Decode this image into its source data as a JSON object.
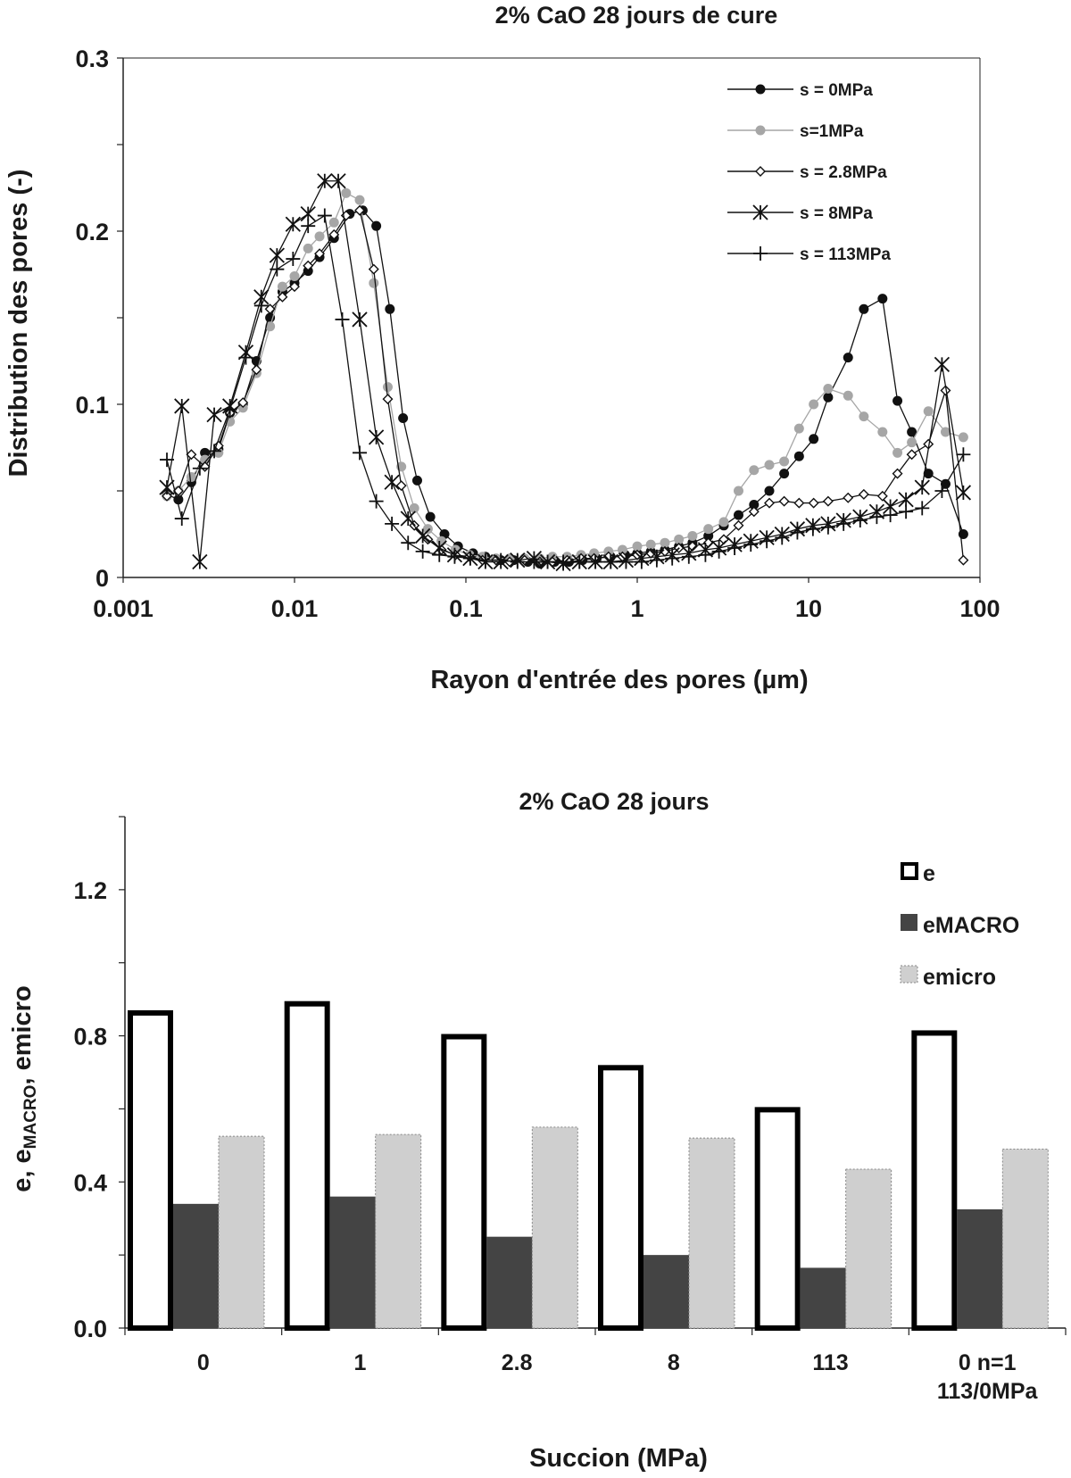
{
  "chart_data": [
    {
      "type": "line",
      "title": "2% CaO 28 jours de cure",
      "xlabel": "Rayon d'entrée des pores (µm)",
      "ylabel": "Distribution des pores (-)",
      "xscale": "log",
      "xlim": [
        0.001,
        100
      ],
      "ylim": [
        0,
        0.3
      ],
      "xticks": [
        "0.001",
        "0.01",
        "0.1",
        "1",
        "10",
        "100"
      ],
      "yticks": [
        "0",
        "0.1",
        "0.2",
        "0.3"
      ],
      "legend_position": "top-right",
      "series": [
        {
          "name": "s = 0MPa",
          "marker": "filled-circle",
          "color": "#111111",
          "x": [
            0.0018,
            0.0021,
            0.0025,
            0.003,
            0.0036,
            0.0042,
            0.005,
            0.006,
            0.0072,
            0.0085,
            0.01,
            0.012,
            0.014,
            0.017,
            0.021,
            0.025,
            0.03,
            0.036,
            0.043,
            0.052,
            0.062,
            0.075,
            0.09,
            0.11,
            0.13,
            0.16,
            0.19,
            0.23,
            0.27,
            0.33,
            0.4,
            0.48,
            0.58,
            0.7,
            0.85,
            1.0,
            1.2,
            1.45,
            1.75,
            2.1,
            2.6,
            3.2,
            3.9,
            4.8,
            5.9,
            7.2,
            8.8,
            10.7,
            13,
            17,
            21,
            27,
            33,
            40,
            50,
            63,
            80
          ],
          "y": [
            0.048,
            0.045,
            0.055,
            0.072,
            0.074,
            0.095,
            0.1,
            0.125,
            0.15,
            0.165,
            0.17,
            0.177,
            0.185,
            0.196,
            0.21,
            0.212,
            0.203,
            0.155,
            0.092,
            0.056,
            0.035,
            0.025,
            0.018,
            0.014,
            0.012,
            0.01,
            0.01,
            0.009,
            0.008,
            0.009,
            0.009,
            0.01,
            0.011,
            0.012,
            0.013,
            0.014,
            0.015,
            0.016,
            0.018,
            0.02,
            0.024,
            0.03,
            0.036,
            0.042,
            0.05,
            0.06,
            0.07,
            0.08,
            0.104,
            0.127,
            0.155,
            0.161,
            0.102,
            0.084,
            0.06,
            0.054,
            0.025
          ]
        },
        {
          "name": "s=1MPa",
          "marker": "filled-circle",
          "color": "#a6a6a6",
          "x": [
            0.0018,
            0.0021,
            0.0025,
            0.003,
            0.0036,
            0.0042,
            0.005,
            0.006,
            0.0072,
            0.0085,
            0.01,
            0.012,
            0.014,
            0.017,
            0.02,
            0.024,
            0.029,
            0.035,
            0.042,
            0.05,
            0.06,
            0.072,
            0.087,
            0.105,
            0.125,
            0.15,
            0.18,
            0.22,
            0.27,
            0.32,
            0.39,
            0.47,
            0.56,
            0.68,
            0.82,
            1.0,
            1.2,
            1.45,
            1.75,
            2.1,
            2.6,
            3.2,
            3.9,
            4.8,
            5.9,
            7.2,
            8.8,
            10.7,
            13,
            17,
            21,
            27,
            33,
            40,
            50,
            63,
            80
          ],
          "y": [
            0.047,
            0.05,
            0.058,
            0.068,
            0.072,
            0.09,
            0.098,
            0.118,
            0.145,
            0.168,
            0.174,
            0.19,
            0.197,
            0.205,
            0.222,
            0.218,
            0.17,
            0.11,
            0.064,
            0.04,
            0.028,
            0.021,
            0.016,
            0.013,
            0.012,
            0.011,
            0.011,
            0.011,
            0.011,
            0.012,
            0.012,
            0.013,
            0.014,
            0.015,
            0.016,
            0.018,
            0.019,
            0.02,
            0.022,
            0.024,
            0.028,
            0.032,
            0.05,
            0.062,
            0.065,
            0.067,
            0.086,
            0.1,
            0.109,
            0.105,
            0.093,
            0.084,
            0.072,
            0.078,
            0.096,
            0.084,
            0.081
          ]
        },
        {
          "name": "s = 2.8MPa",
          "marker": "open-diamond",
          "color": "#111111",
          "x": [
            0.0018,
            0.0021,
            0.0025,
            0.003,
            0.0036,
            0.0042,
            0.005,
            0.006,
            0.0072,
            0.0085,
            0.01,
            0.012,
            0.014,
            0.017,
            0.02,
            0.024,
            0.029,
            0.035,
            0.042,
            0.05,
            0.06,
            0.072,
            0.087,
            0.105,
            0.125,
            0.15,
            0.18,
            0.22,
            0.27,
            0.32,
            0.39,
            0.47,
            0.56,
            0.68,
            0.82,
            1.0,
            1.2,
            1.45,
            1.75,
            2.1,
            2.6,
            3.2,
            3.9,
            4.8,
            5.9,
            7.2,
            8.8,
            10.7,
            13,
            17,
            21,
            27,
            33,
            40,
            50,
            63,
            80
          ],
          "y": [
            0.047,
            0.05,
            0.071,
            0.064,
            0.076,
            0.095,
            0.101,
            0.12,
            0.155,
            0.162,
            0.168,
            0.18,
            0.187,
            0.198,
            0.209,
            0.212,
            0.178,
            0.103,
            0.053,
            0.03,
            0.022,
            0.016,
            0.013,
            0.012,
            0.01,
            0.01,
            0.009,
            0.01,
            0.009,
            0.009,
            0.01,
            0.011,
            0.011,
            0.012,
            0.012,
            0.013,
            0.014,
            0.015,
            0.017,
            0.018,
            0.02,
            0.022,
            0.03,
            0.038,
            0.043,
            0.044,
            0.043,
            0.043,
            0.044,
            0.046,
            0.048,
            0.047,
            0.06,
            0.071,
            0.077,
            0.108,
            0.01
          ]
        },
        {
          "name": "s = 8MPa",
          "marker": "asterisk",
          "color": "#111111",
          "x": [
            0.0018,
            0.0022,
            0.0028,
            0.0034,
            0.0042,
            0.0052,
            0.0064,
            0.0079,
            0.0098,
            0.012,
            0.015,
            0.018,
            0.024,
            0.03,
            0.037,
            0.046,
            0.056,
            0.07,
            0.086,
            0.106,
            0.13,
            0.16,
            0.2,
            0.25,
            0.3,
            0.37,
            0.46,
            0.57,
            0.7,
            0.86,
            1.06,
            1.3,
            1.6,
            2.0,
            2.5,
            3.0,
            3.7,
            4.6,
            5.7,
            7.0,
            8.6,
            10.6,
            13,
            16,
            20,
            25,
            30,
            37,
            46,
            60,
            80
          ],
          "y": [
            0.052,
            0.099,
            0.009,
            0.094,
            0.099,
            0.13,
            0.162,
            0.186,
            0.204,
            0.21,
            0.229,
            0.229,
            0.149,
            0.081,
            0.055,
            0.034,
            0.024,
            0.017,
            0.013,
            0.011,
            0.009,
            0.009,
            0.01,
            0.011,
            0.009,
            0.008,
            0.009,
            0.009,
            0.009,
            0.01,
            0.011,
            0.012,
            0.013,
            0.014,
            0.016,
            0.017,
            0.019,
            0.021,
            0.023,
            0.025,
            0.028,
            0.03,
            0.031,
            0.033,
            0.035,
            0.038,
            0.041,
            0.045,
            0.052,
            0.123,
            0.049
          ]
        },
        {
          "name": "s = 113MPa",
          "marker": "plus",
          "color": "#111111",
          "x": [
            0.0018,
            0.0022,
            0.0028,
            0.0034,
            0.0042,
            0.0052,
            0.0064,
            0.0079,
            0.0098,
            0.012,
            0.015,
            0.019,
            0.024,
            0.03,
            0.037,
            0.046,
            0.056,
            0.07,
            0.086,
            0.106,
            0.13,
            0.16,
            0.2,
            0.25,
            0.3,
            0.37,
            0.46,
            0.57,
            0.7,
            0.86,
            1.06,
            1.3,
            1.6,
            2.0,
            2.5,
            3.0,
            3.7,
            4.6,
            5.7,
            7.0,
            8.6,
            10.6,
            13,
            16,
            20,
            25,
            30,
            37,
            46,
            60,
            80
          ],
          "y": [
            0.068,
            0.034,
            0.063,
            0.073,
            0.097,
            0.127,
            0.157,
            0.178,
            0.184,
            0.203,
            0.209,
            0.149,
            0.072,
            0.044,
            0.031,
            0.02,
            0.015,
            0.013,
            0.012,
            0.011,
            0.01,
            0.01,
            0.009,
            0.009,
            0.009,
            0.009,
            0.009,
            0.009,
            0.009,
            0.009,
            0.009,
            0.01,
            0.011,
            0.012,
            0.013,
            0.015,
            0.017,
            0.019,
            0.021,
            0.023,
            0.026,
            0.028,
            0.029,
            0.031,
            0.033,
            0.035,
            0.036,
            0.038,
            0.04,
            0.05,
            0.071
          ]
        }
      ]
    },
    {
      "type": "bar",
      "title": "2% CaO 28 jours",
      "xlabel": "Succion (MPa)",
      "ylabel": "e, e",
      "ylabel_sub": "MACRO",
      "ylabel_tail": ", emicro",
      "ylim": [
        0,
        1.4
      ],
      "yticks": [
        "0.0",
        "0.4",
        "0.8",
        "1.2"
      ],
      "categories": [
        [
          "0"
        ],
        [
          "1"
        ],
        [
          "2.8"
        ],
        [
          "8"
        ],
        [
          "113"
        ],
        [
          "0 n=1",
          "113/0MPa"
        ]
      ],
      "legend_position": "top-right",
      "series": [
        {
          "name": "e",
          "style": "white-thick-outline",
          "values": [
            0.87,
            0.895,
            0.805,
            0.72,
            0.605,
            0.815
          ]
        },
        {
          "name": "eMACRO",
          "style": "dark-fill",
          "color": "#444444",
          "values": [
            0.34,
            0.36,
            0.25,
            0.2,
            0.165,
            0.325
          ]
        },
        {
          "name": "emicro",
          "style": "light-fill",
          "color": "#cfcfcf",
          "values": [
            0.525,
            0.53,
            0.55,
            0.52,
            0.435,
            0.49
          ]
        }
      ]
    }
  ]
}
